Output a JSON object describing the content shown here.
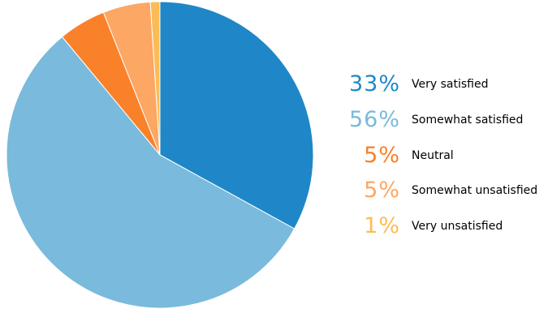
{
  "chart_data": {
    "type": "pie",
    "start_angle_deg": 0,
    "direction": "clockwise",
    "legend_placement": "right",
    "slices": [
      {
        "label": "Very satisfied",
        "value": 33,
        "display": "33%",
        "color": "#1f87c7"
      },
      {
        "label": "Somewhat satisfied",
        "value": 56,
        "display": "56%",
        "color": "#7abadc"
      },
      {
        "label": "Neutral",
        "value": 5,
        "display": "5%",
        "color": "#f9812a"
      },
      {
        "label": "Somewhat unsatisfied",
        "value": 5,
        "display": "5%",
        "color": "#fca764"
      },
      {
        "label": "Very unsatisfied",
        "value": 1,
        "display": "1%",
        "color": "#fcbc55"
      }
    ]
  }
}
